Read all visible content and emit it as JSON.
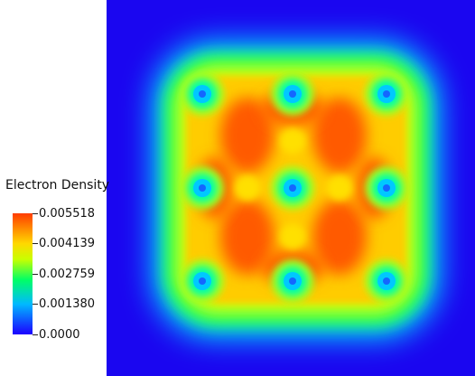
{
  "chart_data": {
    "type": "heatmap",
    "title": "",
    "legend_title": "Electron Density",
    "colorbar": {
      "placement": "left",
      "range": [
        0.0,
        0.005518
      ],
      "ticks": [
        {
          "value": 0.005518,
          "label": "0.005518"
        },
        {
          "value": 0.004139,
          "label": "0.004139"
        },
        {
          "value": 0.002759,
          "label": "0.002759"
        },
        {
          "value": 0.00138,
          "label": "0.001380"
        },
        {
          "value": 0.0,
          "label": "0.0000"
        }
      ],
      "colors": {
        "min": "#1c00ff",
        "low": "#00b9ff",
        "mid": "#00ff66",
        "high_mid": "#ffd800",
        "max": "#ff3c00"
      }
    },
    "field": {
      "background_value": 0.0,
      "atom_grid": {
        "rows": 3,
        "cols": 3
      },
      "atom_core_value": 0.0005,
      "max_shell_value": 0.005518
    }
  }
}
